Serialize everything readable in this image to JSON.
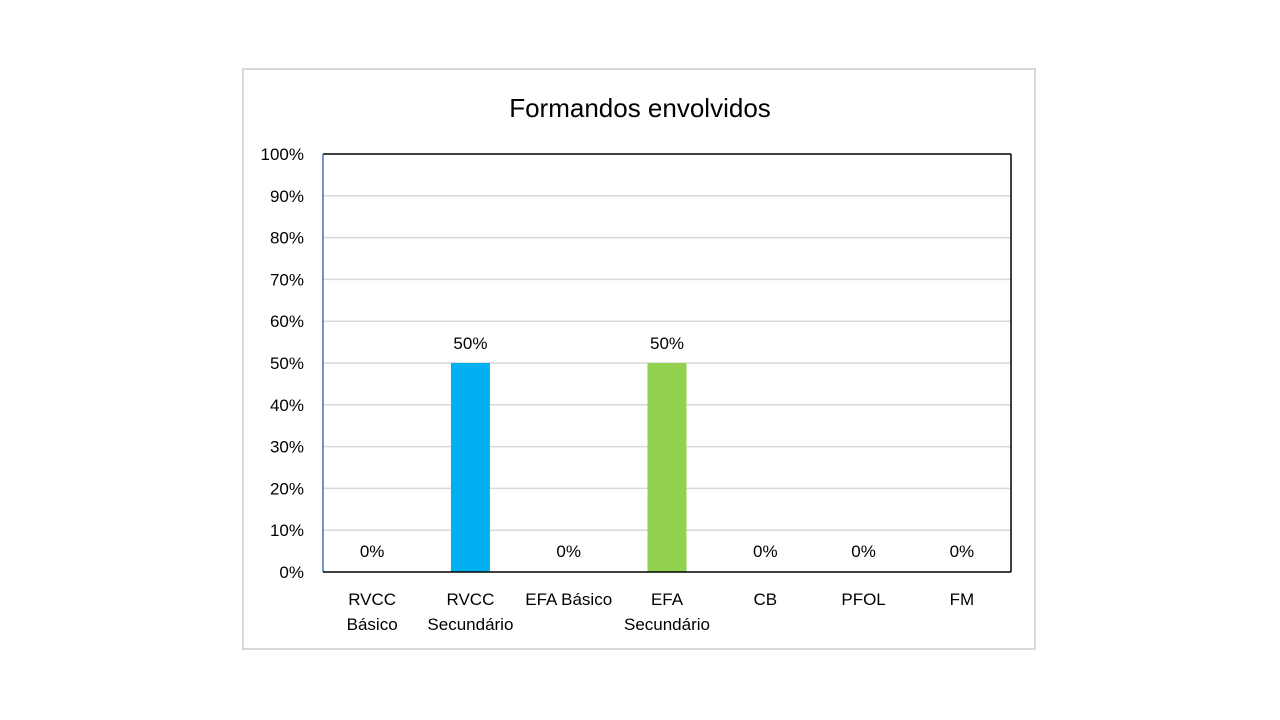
{
  "chart_data": {
    "type": "bar",
    "title": "Formandos envolvidos",
    "xlabel": "",
    "ylabel": "",
    "categories": [
      [
        "RVCC",
        "Básico"
      ],
      [
        "RVCC",
        "Secundário"
      ],
      [
        "EFA Básico"
      ],
      [
        "EFA",
        "Secundário"
      ],
      [
        "CB"
      ],
      [
        "PFOL"
      ],
      [
        "FM"
      ]
    ],
    "values": [
      0,
      50,
      0,
      50,
      0,
      0,
      0
    ],
    "data_labels": [
      "0%",
      "50%",
      "0%",
      "50%",
      "0%",
      "0%",
      "0%"
    ],
    "bar_colors": [
      "#00b0f0",
      "#00b0f0",
      "#92d050",
      "#92d050",
      "#92d050",
      "#92d050",
      "#92d050"
    ],
    "ylim": [
      0,
      100
    ],
    "yticks": [
      "0%",
      "10%",
      "20%",
      "30%",
      "40%",
      "50%",
      "60%",
      "70%",
      "80%",
      "90%",
      "100%"
    ],
    "grid": true,
    "legend": "none"
  }
}
